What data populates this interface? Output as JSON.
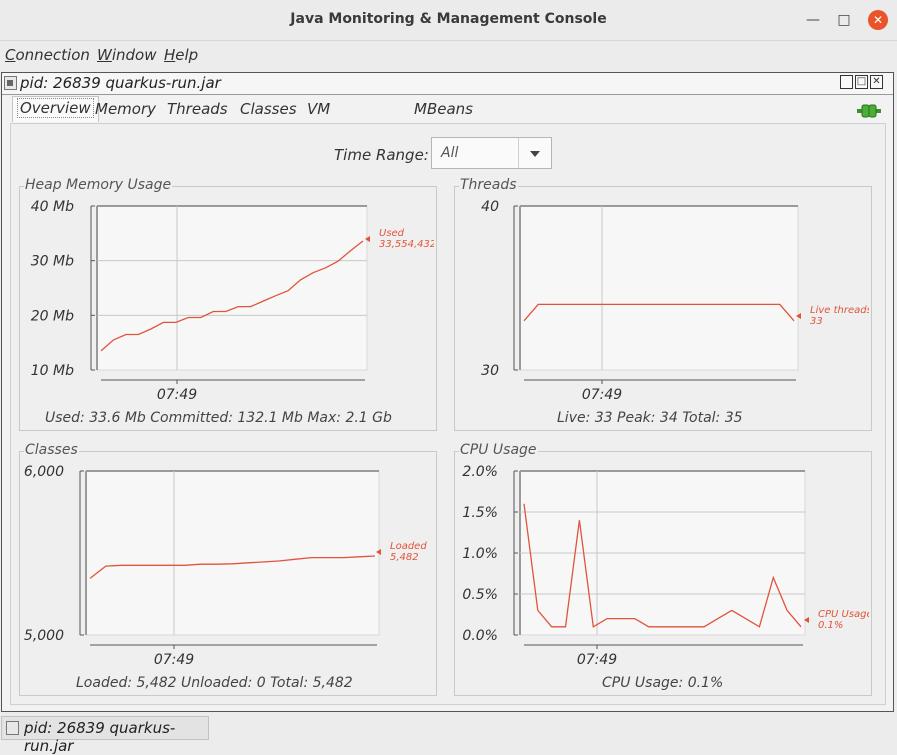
{
  "window": {
    "title": "Java Monitoring & Management Console",
    "minimize": "—",
    "maximize": "□",
    "close": "✕"
  },
  "menubar": {
    "connection": {
      "first": "C",
      "rest": "onnection"
    },
    "window": {
      "first": "W",
      "rest": "indow"
    },
    "help": {
      "first": "H",
      "rest": "elp"
    }
  },
  "internal_frame": {
    "title": "pid: 26839 quarkus-run.jar"
  },
  "tabs": [
    {
      "label": "Overview"
    },
    {
      "label": "Memory"
    },
    {
      "label": "Threads"
    },
    {
      "label": "Classes"
    },
    {
      "label": "VM Summary"
    },
    {
      "label": "MBeans"
    }
  ],
  "time_range": {
    "label": "Time Range:",
    "value": "All"
  },
  "panels": {
    "heap": {
      "title": "Heap Memory Usage",
      "summary": "Used: 33.6 Mb    Committed: 132.1 Mb    Max: 2.1 Gb",
      "legend_name": "Used",
      "legend_value": "33,554,432"
    },
    "threads": {
      "title": "Threads",
      "summary": "Live: 33    Peak: 34    Total: 35",
      "legend_name": "Live threads",
      "legend_value": "33"
    },
    "classes": {
      "title": "Classes",
      "summary": "Loaded: 5,482    Unloaded: 0    Total: 5,482",
      "legend_name": "Loaded",
      "legend_value": "5,482"
    },
    "cpu": {
      "title": "CPU Usage",
      "summary": "CPU Usage: 0.1%",
      "legend_name": "CPU Usage",
      "legend_value": "0.1%"
    }
  },
  "taskbar": {
    "label": "pid: 26839 quarkus-run.jar"
  },
  "colors": {
    "series": "#e0543a",
    "grid": "#c8c8c8",
    "axis": "#555555"
  },
  "chart_data": [
    {
      "type": "line",
      "id": "heap",
      "title": "Heap Memory Usage",
      "y_ticks": [
        "10 Mb",
        "20 Mb",
        "30 Mb",
        "40 Mb"
      ],
      "ylim": [
        10,
        40
      ],
      "x_ticks": [
        "07:49"
      ],
      "series": [
        {
          "name": "Used",
          "values": [
            13.5,
            15.5,
            16.5,
            16.5,
            17.5,
            18.7,
            18.7,
            19.6,
            19.6,
            20.7,
            20.7,
            21.6,
            21.6,
            22.6,
            23.6,
            24.5,
            26.5,
            27.8,
            28.7,
            29.9,
            31.8,
            33.6
          ]
        }
      ]
    },
    {
      "type": "line",
      "id": "threads",
      "title": "Threads",
      "y_ticks": [
        "30",
        "40"
      ],
      "ylim": [
        30,
        40
      ],
      "x_ticks": [
        "07:49"
      ],
      "series": [
        {
          "name": "Live threads",
          "values": [
            33,
            34,
            34,
            34,
            34,
            34,
            34,
            34,
            34,
            34,
            34,
            34,
            34,
            34,
            34,
            34,
            34,
            34,
            34,
            33
          ]
        }
      ]
    },
    {
      "type": "line",
      "id": "classes",
      "title": "Classes",
      "y_ticks": [
        "5,000",
        "6,000"
      ],
      "ylim": [
        5000,
        6000
      ],
      "x_ticks": [
        "07:49"
      ],
      "series": [
        {
          "name": "Loaded",
          "values": [
            5345,
            5420,
            5425,
            5425,
            5425,
            5425,
            5425,
            5432,
            5432,
            5434,
            5440,
            5446,
            5452,
            5462,
            5472,
            5472,
            5472,
            5477,
            5482
          ]
        }
      ]
    },
    {
      "type": "line",
      "id": "cpu",
      "title": "CPU Usage",
      "y_ticks": [
        "0.0%",
        "0.5%",
        "1.0%",
        "1.5%",
        "2.0%"
      ],
      "ylim": [
        0,
        2.0
      ],
      "x_ticks": [
        "07:49"
      ],
      "series": [
        {
          "name": "CPU Usage",
          "values": [
            1.6,
            0.3,
            0.1,
            0.1,
            1.4,
            0.1,
            0.2,
            0.2,
            0.2,
            0.1,
            0.1,
            0.1,
            0.1,
            0.1,
            0.2,
            0.3,
            0.2,
            0.1,
            0.7,
            0.3,
            0.1
          ]
        }
      ]
    }
  ]
}
